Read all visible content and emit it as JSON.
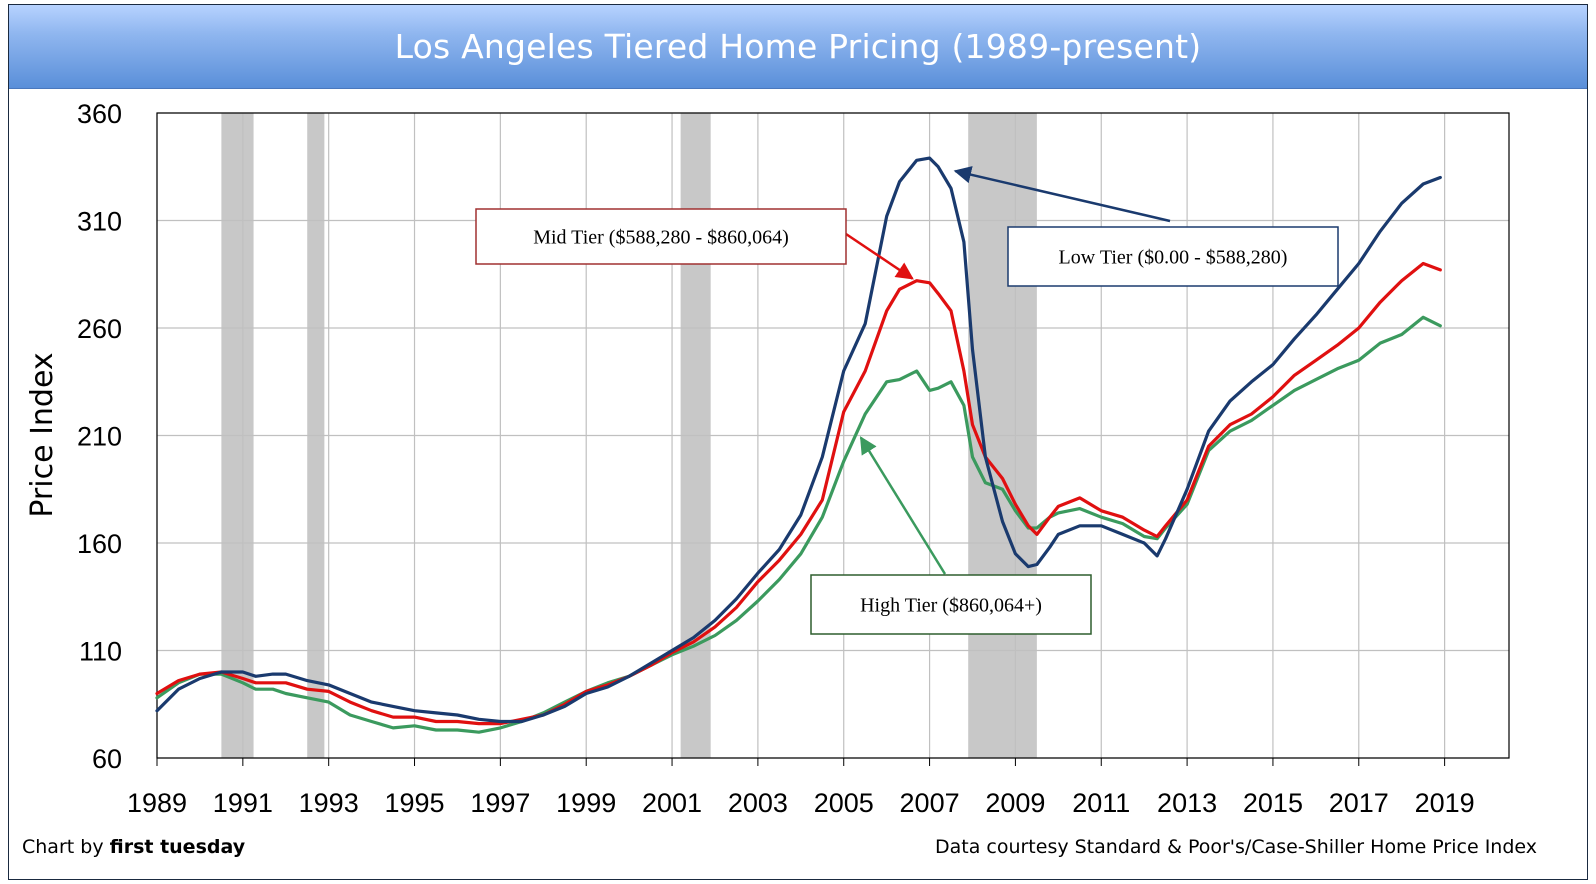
{
  "title": "Los Angeles Tiered Home Pricing (1989-present)",
  "footer": {
    "left_prefix": "Chart by ",
    "left_bold": "first tuesday",
    "right": "Data courtesy Standard & Poor's/Case-Shiller Home Price Index"
  },
  "colors": {
    "low": "#1a3a6e",
    "mid": "#e01010",
    "high": "#3b9a5e",
    "recession": "#c8c8c8",
    "grid": "#c0c0c0",
    "title_bar": "#8fb6ef"
  },
  "chart_data": {
    "type": "line",
    "title": "Los Angeles Tiered Home Pricing (1989-present)",
    "xlabel": "",
    "ylabel": "Price Index",
    "xlim": [
      1989,
      2020.5
    ],
    "ylim": [
      60,
      360
    ],
    "x_ticks": [
      "1989",
      "1991",
      "1993",
      "1995",
      "1997",
      "1999",
      "2001",
      "2003",
      "2005",
      "2007",
      "2009",
      "2011",
      "2013",
      "2015",
      "2017",
      "2019"
    ],
    "y_ticks": [
      "60",
      "110",
      "160",
      "210",
      "260",
      "310",
      "360"
    ],
    "grid": true,
    "recessions": [
      [
        1990.5,
        1991.25
      ],
      [
        1992.5,
        1992.9
      ],
      [
        2001.2,
        2001.9
      ],
      [
        2007.9,
        2009.5
      ]
    ],
    "annotations": [
      {
        "text": "Mid Tier ($588,280 - $860,064)",
        "series": "mid",
        "target": [
          2006.6,
          283
        ]
      },
      {
        "text": "Low Tier ($0.00 - $588,280)",
        "series": "low",
        "target": [
          2007.6,
          333
        ]
      },
      {
        "text": "High Tier ($860,064+)",
        "series": "high",
        "target": [
          2005.4,
          209
        ]
      }
    ],
    "series": [
      {
        "name": "Low Tier ($0.00 - $588,280)",
        "key": "low",
        "x": [
          1989,
          1989.5,
          1990,
          1990.5,
          1991,
          1991.3,
          1991.7,
          1992,
          1992.5,
          1993,
          1993.5,
          1994,
          1994.5,
          1995,
          1995.5,
          1996,
          1996.5,
          1997,
          1997.5,
          1998,
          1998.5,
          1999,
          1999.5,
          2000,
          2000.5,
          2001,
          2001.5,
          2002,
          2002.5,
          2003,
          2003.5,
          2004,
          2004.5,
          2005,
          2005.5,
          2006,
          2006.3,
          2006.7,
          2007,
          2007.2,
          2007.5,
          2007.8,
          2008,
          2008.3,
          2008.7,
          2009,
          2009.3,
          2009.5,
          2009.8,
          2010,
          2010.5,
          2011,
          2011.5,
          2012,
          2012.3,
          2012.5,
          2013,
          2013.5,
          2014,
          2014.5,
          2015,
          2015.5,
          2016,
          2016.5,
          2017,
          2017.5,
          2018,
          2018.5,
          2018.9
        ],
        "y": [
          82,
          92,
          97,
          100,
          100,
          98,
          99,
          99,
          96,
          94,
          90,
          86,
          84,
          82,
          81,
          80,
          78,
          77,
          77,
          80,
          84,
          90,
          93,
          98,
          104,
          110,
          116,
          124,
          134,
          146,
          157,
          173,
          200,
          240,
          262,
          312,
          328,
          338,
          339,
          335,
          325,
          300,
          250,
          200,
          170,
          155,
          149,
          150,
          158,
          164,
          168,
          168,
          164,
          160,
          154,
          162,
          185,
          212,
          226,
          235,
          243,
          255,
          266,
          278,
          290,
          305,
          318,
          327,
          330
        ]
      },
      {
        "name": "Mid Tier ($588,280 - $860,064)",
        "key": "mid",
        "x": [
          1989,
          1989.5,
          1990,
          1990.5,
          1991,
          1991.3,
          1991.7,
          1992,
          1992.5,
          1993,
          1993.5,
          1994,
          1994.5,
          1995,
          1995.5,
          1996,
          1996.5,
          1997,
          1997.5,
          1998,
          1998.5,
          1999,
          1999.5,
          2000,
          2000.5,
          2001,
          2001.5,
          2002,
          2002.5,
          2003,
          2003.5,
          2004,
          2004.5,
          2005,
          2005.5,
          2006,
          2006.3,
          2006.7,
          2007,
          2007.2,
          2007.5,
          2007.8,
          2008,
          2008.3,
          2008.7,
          2009,
          2009.3,
          2009.5,
          2009.8,
          2010,
          2010.5,
          2011,
          2011.5,
          2012,
          2012.3,
          2012.5,
          2013,
          2013.5,
          2014,
          2014.5,
          2015,
          2015.5,
          2016,
          2016.5,
          2017,
          2017.5,
          2018,
          2018.5,
          2018.9
        ],
        "y": [
          90,
          96,
          99,
          100,
          97,
          95,
          95,
          95,
          92,
          91,
          86,
          82,
          79,
          79,
          77,
          77,
          76,
          76,
          78,
          80,
          85,
          91,
          94,
          98,
          103,
          109,
          114,
          121,
          130,
          142,
          152,
          164,
          180,
          221,
          240,
          268,
          278,
          282,
          281,
          276,
          268,
          240,
          215,
          200,
          190,
          178,
          168,
          164,
          172,
          177,
          181,
          175,
          172,
          166,
          163,
          168,
          180,
          205,
          215,
          220,
          228,
          238,
          245,
          252,
          260,
          272,
          282,
          290,
          287
        ]
      },
      {
        "name": "High Tier ($860,064+)",
        "key": "high",
        "x": [
          1989,
          1989.5,
          1990,
          1990.5,
          1991,
          1991.3,
          1991.7,
          1992,
          1992.5,
          1993,
          1993.5,
          1994,
          1994.5,
          1995,
          1995.5,
          1996,
          1996.5,
          1997,
          1997.5,
          1998,
          1998.5,
          1999,
          1999.5,
          2000,
          2000.5,
          2001,
          2001.5,
          2002,
          2002.5,
          2003,
          2003.5,
          2004,
          2004.5,
          2005,
          2005.5,
          2006,
          2006.3,
          2006.7,
          2007,
          2007.2,
          2007.5,
          2007.8,
          2008,
          2008.3,
          2008.7,
          2009,
          2009.3,
          2009.5,
          2009.8,
          2010,
          2010.5,
          2011,
          2011.5,
          2012,
          2012.3,
          2012.5,
          2013,
          2013.5,
          2014,
          2014.5,
          2015,
          2015.5,
          2016,
          2016.5,
          2017,
          2017.5,
          2018,
          2018.5,
          2018.9
        ],
        "y": [
          88,
          95,
          99,
          99,
          95,
          92,
          92,
          90,
          88,
          86,
          80,
          77,
          74,
          75,
          73,
          73,
          72,
          74,
          77,
          81,
          86,
          91,
          95,
          98,
          103,
          108,
          112,
          117,
          124,
          133,
          143,
          155,
          172,
          198,
          220,
          235,
          236,
          240,
          231,
          232,
          235,
          224,
          200,
          188,
          185,
          175,
          167,
          167,
          172,
          174,
          176,
          172,
          169,
          163,
          162,
          167,
          178,
          203,
          212,
          217,
          224,
          231,
          236,
          241,
          245,
          253,
          257,
          265,
          261
        ]
      }
    ]
  }
}
